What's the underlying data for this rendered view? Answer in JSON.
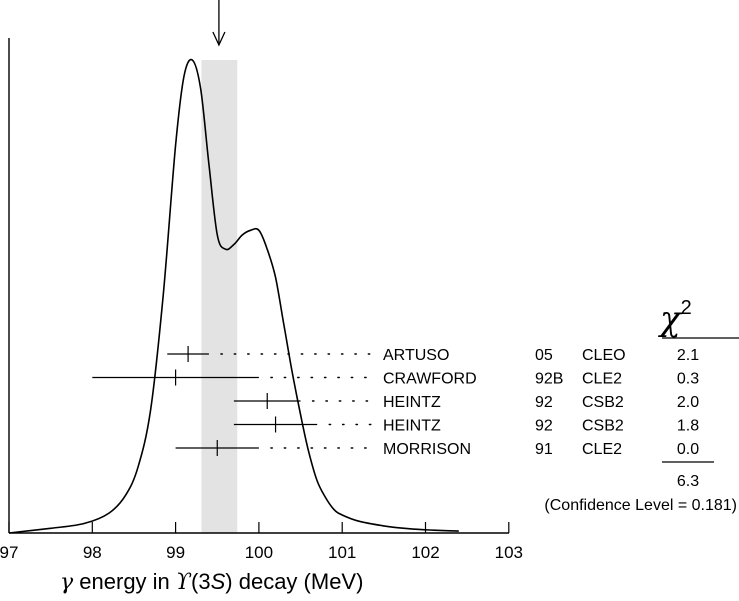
{
  "chart_data": {
    "type": "ideogram",
    "xlabel": {
      "gamma": "γ",
      "pre": "energy in",
      "upsilon": "ϒ",
      "state": "(3",
      "s_letter": "S",
      "post": ") decay (MeV)"
    },
    "xlim": [
      97,
      103
    ],
    "x_ticks": [
      "97",
      "98",
      "99",
      "100",
      "101",
      "102",
      "103"
    ],
    "weighted_average": {
      "value": 99.52,
      "band": [
        99.31,
        99.74
      ]
    },
    "curve": {
      "x": [
        97.0,
        97.5,
        97.9,
        98.2,
        98.4,
        98.55,
        98.7,
        98.85,
        99.0,
        99.1,
        99.2,
        99.3,
        99.4,
        99.5,
        99.6,
        99.7,
        99.8,
        99.9,
        100.0,
        100.1,
        100.2,
        100.3,
        100.4,
        100.5,
        100.6,
        100.7,
        100.8,
        100.9,
        101.0,
        101.2,
        101.5,
        101.8,
        102.1,
        102.4
      ],
      "y": [
        0.0,
        0.01,
        0.02,
        0.042,
        0.08,
        0.14,
        0.26,
        0.5,
        0.82,
        0.965,
        1.0,
        0.94,
        0.78,
        0.63,
        0.6,
        0.61,
        0.63,
        0.64,
        0.64,
        0.6,
        0.54,
        0.44,
        0.34,
        0.25,
        0.17,
        0.11,
        0.075,
        0.05,
        0.038,
        0.025,
        0.015,
        0.009,
        0.006,
        0.004
      ]
    },
    "chi2_header": "χ",
    "chi2_header_sup": "2",
    "measurements": [
      {
        "value": 99.15,
        "err_low": 0.25,
        "err_high": 0.25,
        "author": "ARTUSO",
        "year": "05",
        "experiment": "CLEO",
        "chi2": "2.1"
      },
      {
        "value": 99.0,
        "err_low": 1.0,
        "err_high": 1.0,
        "author": "CRAWFORD",
        "year": "92B",
        "experiment": "CLE2",
        "chi2": "0.3"
      },
      {
        "value": 100.1,
        "err_low": 0.4,
        "err_high": 0.4,
        "author": "HEINTZ",
        "year": "92",
        "experiment": "CSB2",
        "chi2": "2.0"
      },
      {
        "value": 100.2,
        "err_low": 0.5,
        "err_high": 0.5,
        "author": "HEINTZ",
        "year": "92",
        "experiment": "CSB2",
        "chi2": "1.8"
      },
      {
        "value": 99.5,
        "err_low": 0.5,
        "err_high": 0.5,
        "author": "MORRISON",
        "year": "91",
        "experiment": "CLE2",
        "chi2": "0.0"
      }
    ],
    "chi2_total": "6.3",
    "confidence_level": "(Confidence Level = 0.181)"
  }
}
